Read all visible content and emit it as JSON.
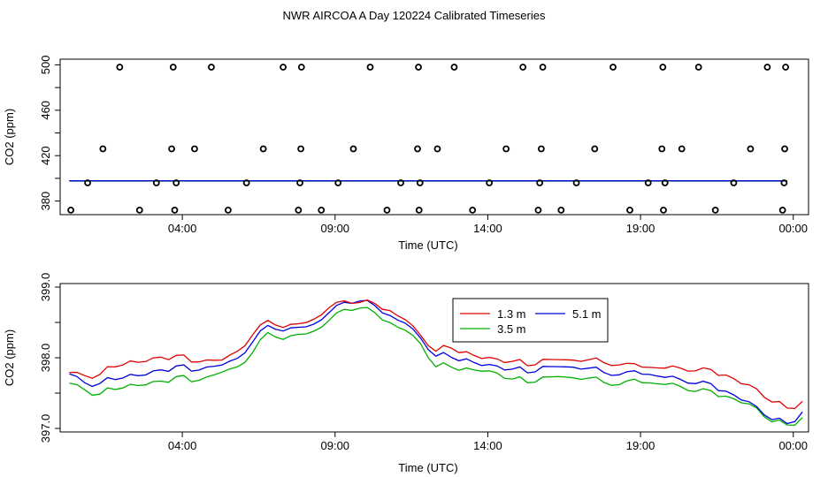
{
  "figure_title": "NWR AIRCOA A  Day 120224  Calibrated Timeseries",
  "colors": {
    "red": "#e00000",
    "green": "#00b000",
    "blue": "#0000e0",
    "axis": "#000000"
  },
  "chart_data": [
    {
      "type": "scatter",
      "title": "",
      "xlabel": "Time (UTC)",
      "ylabel": "CO2 (ppm)",
      "xlim": [
        0,
        24.5
      ],
      "ylim": [
        368,
        505
      ],
      "xticks": [
        4,
        9,
        14,
        19,
        24
      ],
      "xtick_labels": [
        "04:00",
        "09:00",
        "14:00",
        "19:00",
        "00:00"
      ],
      "yticks": [
        380,
        420,
        460,
        500
      ],
      "ytick_labels": [
        "380",
        "420",
        "460",
        "500"
      ],
      "yticks_minor": [
        400,
        440,
        480
      ],
      "points": {
        "x": [
          0.35,
          0.9,
          1.4,
          1.95,
          2.6,
          3.15,
          3.65,
          3.7,
          3.75,
          3.8,
          4.4,
          4.95,
          5.5,
          6.1,
          6.65,
          7.3,
          7.8,
          7.85,
          7.88,
          7.9,
          8.55,
          9.1,
          9.6,
          10.15,
          10.7,
          11.15,
          11.7,
          11.73,
          11.75,
          11.78,
          12.35,
          12.9,
          13.5,
          14.05,
          14.6,
          15.15,
          15.65,
          15.7,
          15.75,
          15.8,
          16.4,
          16.9,
          17.5,
          18.1,
          18.65,
          19.25,
          19.7,
          19.73,
          19.75,
          19.8,
          20.35,
          20.9,
          21.45,
          22.05,
          22.6,
          23.15,
          23.65,
          23.7,
          23.72,
          23.75
        ],
        "y": [
          372,
          396,
          426,
          498,
          372,
          396,
          426,
          498,
          372,
          396,
          426,
          498,
          372,
          396,
          426,
          498,
          372,
          396,
          426,
          498,
          372,
          396,
          426,
          498,
          372,
          396,
          426,
          498,
          372,
          396,
          426,
          498,
          372,
          396,
          426,
          498,
          372,
          396,
          426,
          498,
          372,
          396,
          426,
          498,
          372,
          396,
          426,
          498,
          372,
          396,
          426,
          498,
          372,
          396,
          426,
          498,
          372,
          396,
          426,
          498
        ]
      },
      "series": [
        {
          "name": "1.3 m",
          "color": "red",
          "values": [
            397.7,
            397.7
          ]
        },
        {
          "name": "3.5 m",
          "color": "green",
          "values": [
            397.6,
            397.6
          ]
        },
        {
          "name": "5.1 m",
          "color": "blue",
          "values": [
            397.8,
            397.8
          ]
        }
      ]
    },
    {
      "type": "line",
      "title": "",
      "xlabel": "Time (UTC)",
      "ylabel": "CO2 (ppm)",
      "xlim": [
        0,
        24.5
      ],
      "ylim": [
        396.95,
        399.05
      ],
      "xticks": [
        4,
        9,
        14,
        19,
        24
      ],
      "xtick_labels": [
        "04:00",
        "09:00",
        "14:00",
        "19:00",
        "00:00"
      ],
      "yticks": [
        397.0,
        398.0,
        399.0
      ],
      "ytick_labels": [
        "397.0",
        "398.0",
        "399.0"
      ],
      "yticks_minor": [
        397.5,
        398.5
      ],
      "legend": {
        "position": "top-center",
        "entries": [
          "1.3 m",
          "5.1 m",
          "3.5 m"
        ]
      },
      "x": [
        0.0,
        0.5,
        1.0,
        1.5,
        2.0,
        2.5,
        3.0,
        3.5,
        4.0,
        4.5,
        5.0,
        5.5,
        6.0,
        6.5,
        7.0,
        7.5,
        8.0,
        8.5,
        9.0,
        9.5,
        10.0,
        10.5,
        11.0,
        11.5,
        12.0,
        12.5,
        13.0,
        13.5,
        14.0,
        14.5,
        15.0,
        15.5,
        16.0,
        16.5,
        17.0,
        17.5,
        18.0,
        18.5,
        19.0,
        19.5,
        20.0,
        20.5,
        21.0,
        21.5,
        22.0,
        22.5,
        23.0,
        23.5,
        24.0
      ],
      "series": [
        {
          "name": "1.3 m",
          "color": "red",
          "values": [
            397.8,
            397.72,
            397.78,
            397.9,
            397.93,
            397.95,
            398.0,
            398.02,
            397.98,
            397.96,
            397.95,
            398.1,
            398.3,
            398.55,
            398.45,
            398.45,
            398.55,
            398.7,
            398.8,
            398.82,
            398.75,
            398.65,
            398.55,
            398.3,
            398.12,
            398.15,
            398.05,
            398.0,
            397.98,
            397.95,
            397.92,
            397.95,
            397.96,
            397.98,
            397.96,
            397.96,
            397.9,
            397.88,
            397.88,
            397.85,
            397.86,
            397.84,
            397.8,
            397.75,
            397.65,
            397.55,
            397.4,
            397.28,
            397.35
          ]
        },
        {
          "name": "3.5 m",
          "color": "green",
          "values": [
            397.65,
            397.52,
            397.5,
            397.58,
            397.6,
            397.62,
            397.66,
            397.72,
            397.7,
            397.72,
            397.78,
            397.88,
            398.05,
            398.38,
            398.28,
            398.3,
            398.38,
            398.52,
            398.68,
            398.74,
            398.62,
            398.48,
            398.4,
            398.18,
            397.9,
            397.88,
            397.82,
            397.82,
            397.78,
            397.7,
            397.68,
            397.7,
            397.72,
            397.73,
            397.7,
            397.68,
            397.62,
            397.66,
            397.66,
            397.62,
            397.6,
            397.55,
            397.5,
            397.45,
            397.38,
            397.28,
            397.12,
            397.04,
            397.12
          ]
        },
        {
          "name": "5.1 m",
          "color": "blue",
          "values": [
            397.78,
            397.62,
            397.65,
            397.72,
            397.74,
            397.76,
            397.82,
            397.87,
            397.85,
            397.86,
            397.88,
            398.0,
            398.2,
            398.48,
            398.4,
            398.4,
            398.48,
            398.63,
            398.78,
            398.84,
            398.72,
            398.58,
            398.5,
            398.26,
            398.05,
            398.02,
            397.95,
            397.9,
            397.88,
            397.84,
            397.82,
            397.85,
            397.86,
            397.88,
            397.84,
            397.82,
            397.76,
            397.78,
            397.78,
            397.72,
            397.7,
            397.66,
            397.6,
            397.52,
            397.42,
            397.3,
            397.15,
            397.06,
            397.2
          ]
        }
      ]
    }
  ]
}
